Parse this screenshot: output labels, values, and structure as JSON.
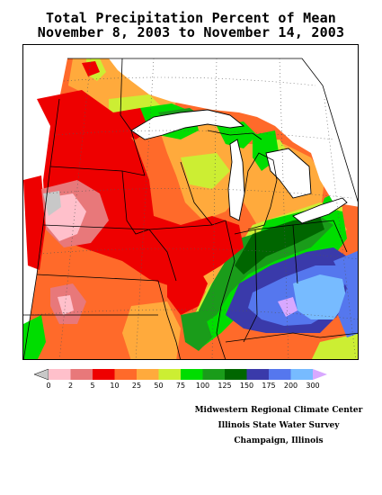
{
  "title_line1": "Total Precipitation Percent of Mean",
  "title_line2": "November 8, 2003 to November 14, 2003",
  "legend": {
    "ticks": [
      "0",
      "2",
      "5",
      "10",
      "25",
      "50",
      "75",
      "100",
      "125",
      "150",
      "175",
      "200",
      "300"
    ],
    "colors": [
      "#c8c8c8",
      "#ffc0cb",
      "#e8787a",
      "#ee0000",
      "#ff6a2a",
      "#ffaa3c",
      "#ccee33",
      "#00dd00",
      "#1a9c1a",
      "#006600",
      "#3a3aaa",
      "#5577ee",
      "#77bbff",
      "#d8a8ff"
    ]
  },
  "credits": {
    "line1": "Midwestern Regional Climate Center",
    "line2": "Illinois State Water Survey",
    "line3": "Champaign, Illinois"
  }
}
